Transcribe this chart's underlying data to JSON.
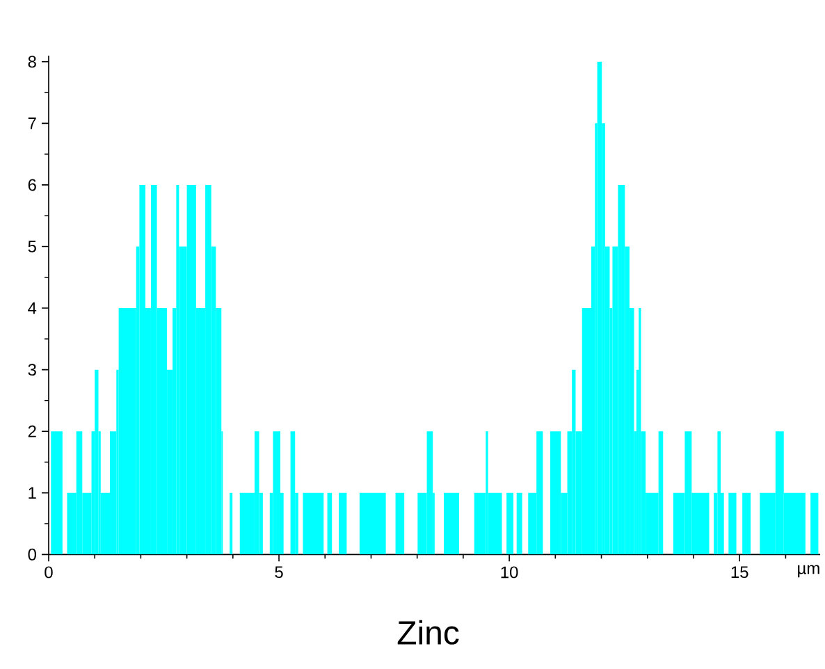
{
  "chart_data": {
    "type": "histogram",
    "title": "Zinc",
    "xlabel": "µm",
    "color": "#00ffff",
    "bins": [
      0.05,
      0.3,
      0.4,
      0.6,
      0.73,
      0.93,
      1.0,
      1.08,
      1.13,
      1.33,
      1.47,
      1.52,
      1.9,
      1.97,
      2.1,
      2.22,
      2.35,
      2.57,
      2.69,
      2.77,
      2.83,
      3.0,
      3.2,
      3.4,
      3.53,
      3.63,
      3.75,
      3.78,
      3.93,
      3.99,
      4.15,
      4.47,
      4.57,
      4.65,
      4.8,
      4.87,
      5.03,
      5.1,
      5.25,
      5.35,
      5.42,
      5.52,
      5.97,
      6.05,
      6.15,
      6.3,
      6.47,
      6.75,
      7.32,
      7.53,
      7.72,
      8.01,
      8.21,
      8.34,
      8.38,
      8.58,
      8.91,
      9.24,
      9.49,
      9.54,
      9.84,
      9.94,
      10.09,
      10.16,
      10.28,
      10.41,
      10.59,
      10.73,
      10.89,
      11.12,
      11.26,
      11.36,
      11.44,
      11.58,
      11.78,
      11.86,
      11.91,
      12.01,
      12.08,
      12.18,
      12.24,
      12.36,
      12.51,
      12.61,
      12.71,
      12.76,
      12.81,
      12.86,
      12.96,
      13.24,
      13.34,
      13.56,
      13.81,
      13.96,
      14.34,
      14.44,
      14.52,
      14.59,
      14.66,
      14.76,
      14.93,
      15.06,
      15.24,
      15.44,
      15.78,
      15.96,
      16.43,
      16.54,
      16.71
    ],
    "values": [
      2,
      0,
      1,
      2,
      1,
      2,
      3,
      2,
      1,
      2,
      3,
      4,
      5,
      6,
      4,
      6,
      4,
      3,
      4,
      6,
      5,
      6,
      4,
      6,
      5,
      4,
      2,
      0,
      1,
      0,
      1,
      2,
      1,
      0,
      1,
      2,
      1,
      0,
      2,
      1,
      0,
      1,
      0,
      1,
      0,
      1,
      0,
      1,
      0,
      1,
      0,
      1,
      2,
      1,
      0,
      1,
      0,
      1,
      2,
      1,
      0,
      1,
      0,
      1,
      0,
      1,
      2,
      0,
      2,
      1,
      2,
      3,
      2,
      4,
      5,
      7,
      8,
      7,
      5,
      4,
      5,
      6,
      5,
      4,
      2,
      3,
      4,
      2,
      1,
      2,
      0,
      1,
      2,
      1,
      0,
      1,
      2,
      1,
      0,
      1,
      0,
      1,
      0,
      1,
      2,
      1,
      0,
      1
    ],
    "xlim": [
      0,
      16.75
    ],
    "ylim": [
      0,
      8.1
    ],
    "xticks": [
      0,
      {
        "value": 1,
        "label": null
      },
      {
        "value": 2,
        "label": null
      },
      {
        "value": 3,
        "label": null
      },
      {
        "value": 4,
        "label": null
      },
      5,
      {
        "value": 6,
        "label": null
      },
      {
        "value": 7,
        "label": null
      },
      {
        "value": 8,
        "label": null
      },
      {
        "value": 9,
        "label": null
      },
      10,
      {
        "value": 11,
        "label": null
      },
      {
        "value": 12,
        "label": null
      },
      {
        "value": 13,
        "label": null
      },
      {
        "value": 14,
        "label": null
      },
      15,
      {
        "value": 16,
        "label": null
      }
    ],
    "yticks": [
      0,
      {
        "value": 0.5,
        "label": null
      },
      1,
      {
        "value": 1.5,
        "label": null
      },
      2,
      {
        "value": 2.5,
        "label": null
      },
      3,
      {
        "value": 3.5,
        "label": null
      },
      4,
      {
        "value": 4.5,
        "label": null
      },
      5,
      {
        "value": 5.5,
        "label": null
      },
      6,
      {
        "value": 6.5,
        "label": null
      },
      7,
      {
        "value": 7.5,
        "label": null
      },
      8
    ]
  }
}
